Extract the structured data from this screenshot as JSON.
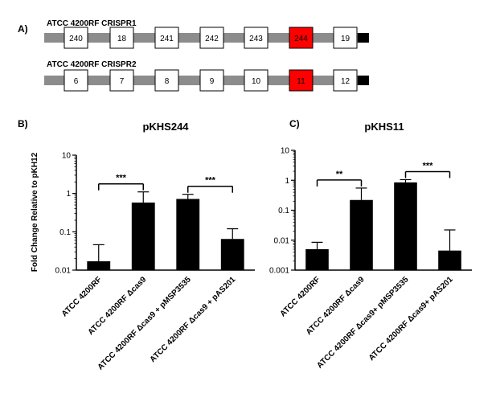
{
  "panel_a": {
    "label": "A)",
    "rows": [
      {
        "title": "ATCC 4200RF CRISPR1",
        "spacers": [
          "240",
          "18",
          "241",
          "242",
          "243",
          "244",
          "19"
        ],
        "highlight": "244"
      },
      {
        "title": "ATCC 4200RF CRISPR2",
        "spacers": [
          "6",
          "7",
          "8",
          "9",
          "10",
          "11",
          "12"
        ],
        "highlight": "11"
      }
    ],
    "colors": {
      "repeat": "#8c8c8c",
      "spacer": "#ffffff",
      "highlight": "#ff0000",
      "leader": "#000000"
    }
  },
  "ylabel": "Fold Change Relative to pKH12",
  "chart_data": [
    {
      "panel_label": "B)",
      "type": "bar",
      "title": "pKHS244",
      "yscale": "log",
      "ylim": [
        0.01,
        10
      ],
      "yticks": [
        "10",
        "1",
        "0.1",
        "0.01"
      ],
      "categories": [
        "ATCC 4200RF",
        "ATCC 4200RF Δcas9",
        "ATCC 4200RF Δcas9 + pMSP3535",
        "ATCC 4200RF Δcas9 + pAS201"
      ],
      "values": [
        0.017,
        0.58,
        0.72,
        0.065
      ],
      "error_upper": [
        0.046,
        1.1,
        0.95,
        0.12
      ],
      "significance": [
        {
          "from": 0,
          "to": 1,
          "label": "***"
        },
        {
          "from": 2,
          "to": 3,
          "label": "***"
        }
      ],
      "bar_color": "#000000"
    },
    {
      "panel_label": "C)",
      "type": "bar",
      "title": "pKHS11",
      "yscale": "log",
      "ylim": [
        0.001,
        10
      ],
      "yticks": [
        "10",
        "1",
        "0.1",
        "0.01",
        "0.001"
      ],
      "categories": [
        "ATCC 4200RF",
        "ATCC 4200RF Δcas9",
        "ATCC 4200RF Δcas9+ pMSP3535",
        "ATCC 4200RF Δcas9+ pAS201"
      ],
      "values": [
        0.005,
        0.22,
        0.85,
        0.0045
      ],
      "error_upper": [
        0.0085,
        0.55,
        1.05,
        0.022
      ],
      "significance": [
        {
          "from": 0,
          "to": 1,
          "label": "**"
        },
        {
          "from": 2,
          "to": 3,
          "label": "***"
        }
      ],
      "bar_color": "#000000"
    }
  ]
}
